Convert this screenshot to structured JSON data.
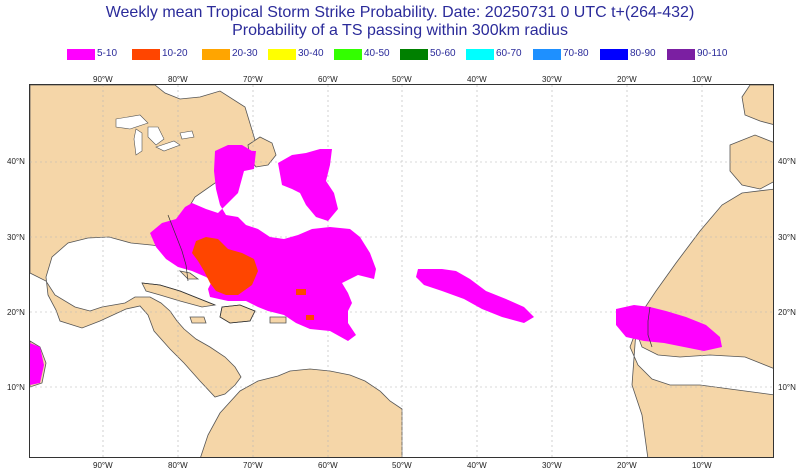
{
  "title_line1": "Weekly mean Tropical Storm Strike Probability. Date: 20250731  0 UTC   t+(264-432)",
  "title_line2": "Probability of a TS passing within  300km radius",
  "legend": [
    {
      "label": "5-10",
      "color": "#ff00ff"
    },
    {
      "label": "10-20",
      "color": "#ff4500"
    },
    {
      "label": "20-30",
      "color": "#ffa500"
    },
    {
      "label": "30-40",
      "color": "#ffff00"
    },
    {
      "label": "40-50",
      "color": "#33ff00"
    },
    {
      "label": "50-60",
      "color": "#008000"
    },
    {
      "label": "60-70",
      "color": "#00ffff"
    },
    {
      "label": "70-80",
      "color": "#1e90ff"
    },
    {
      "label": "80-90",
      "color": "#0000ff"
    },
    {
      "label": "90-110",
      "color": "#7b1fa2"
    }
  ],
  "lon_labels": [
    "90°W",
    "80°W",
    "70°W",
    "60°W",
    "50°W",
    "40°W",
    "30°W",
    "20°W",
    "10°W"
  ],
  "lat_labels": [
    "40°N",
    "30°N",
    "20°N",
    "10°N"
  ],
  "colors": {
    "land": "#f5d6a8",
    "ocean": "#ffffff",
    "grid": "#b5b5b5",
    "coast": "#555555",
    "title": "#2b2b9a"
  }
}
